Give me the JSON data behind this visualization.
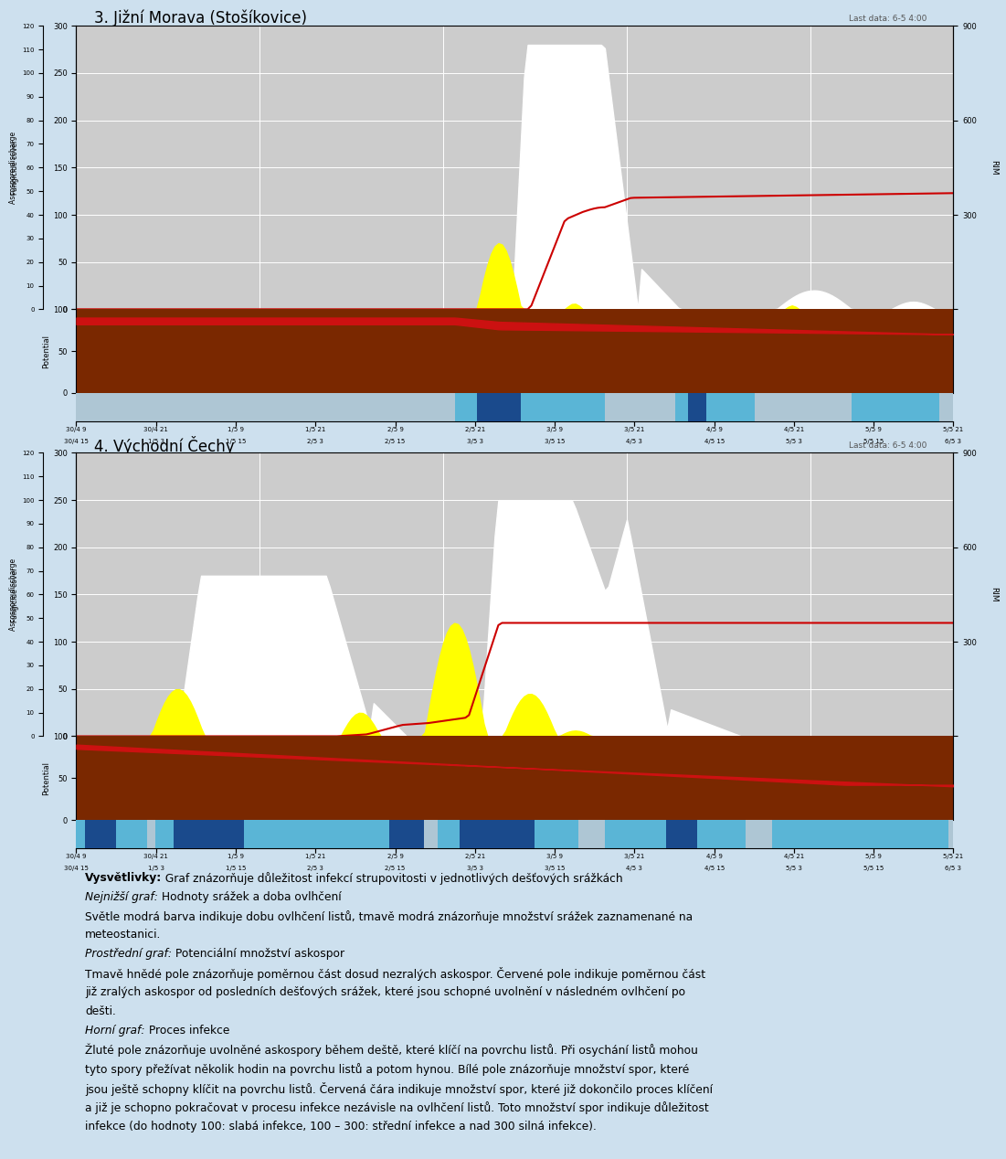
{
  "title1": "3. Jižní Morava (Stošíkovice)",
  "title2": "4. Východní Čechy",
  "last_data": "Last data: 6-5 4:00",
  "bg_color": "#cde0ee",
  "plot_bg": "#cccccc",
  "grid_color": "#ffffff",
  "x_labels_top": [
    "30/4 9",
    "30/4 21",
    "1/5 9",
    "1/5 21",
    "2/5 9",
    "2/5 21",
    "3/5 9",
    "3/5 21",
    "4/5 9",
    "4/5 21",
    "5/5 9",
    "5/5 21"
  ],
  "x_labels_bottom": [
    "30/4 15",
    "1/5 3",
    "1/5 15",
    "2/5 3",
    "2/5 15",
    "3/5 3",
    "3/5 15",
    "4/5 3",
    "4/5 15",
    "5/5 3",
    "5/5 15",
    "6/5 3"
  ],
  "text_lines": [
    {
      "bold": "Vysvětlivky:",
      "normal": " Graf znázorňuje důležitost infekcí strupovitosti v jednotlivých dešťových srážkách"
    },
    {
      "italic_bold": "Nejnižší graf:",
      "normal": " Hodnoty srážek a doba ovlhčení"
    },
    {
      "normal": "Světle modrá barva indikuje dobu ovlhčení listů, tmavě modrá znázorňuje množství srážek zaznamenané na"
    },
    {
      "normal": "meteostanici."
    },
    {
      "italic_bold": "Prostřední graf:",
      "normal": " Potenciální množství askospor"
    },
    {
      "normal": "Tmavě hnědé pole znázorňuje poměrnou část dosud nezralých askospor. Červené pole indikuje poměrnou část"
    },
    {
      "normal": "již zralých askospor od posledních dešťových srážek, které jsou schopné uvolnění v následném ovlhčení po"
    },
    {
      "normal": "dešti."
    },
    {
      "italic_bold": "Horní graf:",
      "normal": " Proces infekce"
    },
    {
      "normal": "Žluté pole znázorňuje uvolněné askospory během deště, které klíčí na povrchu listů. Při osychání listů mohou"
    },
    {
      "normal": "tyto spory přežívat několik hodin na povrchu listů a potom hynou. Bílé pole znázorňuje množství spor, které"
    },
    {
      "normal": "jsou ještě schopny klíčit na povrchu listů. Červená čára indikuje množství spor, které již dokončilo proces klíčení"
    },
    {
      "normal": "a již je schopno pokračovat v procesu infekce nezávisle na ovlhčení listů. Toto množství spor indikuje důležitost"
    },
    {
      "normal": "infekce (do hodnoty 100: slabá infekce, 100 – 300: střední infekce a nad 300 silná infekce)."
    }
  ]
}
